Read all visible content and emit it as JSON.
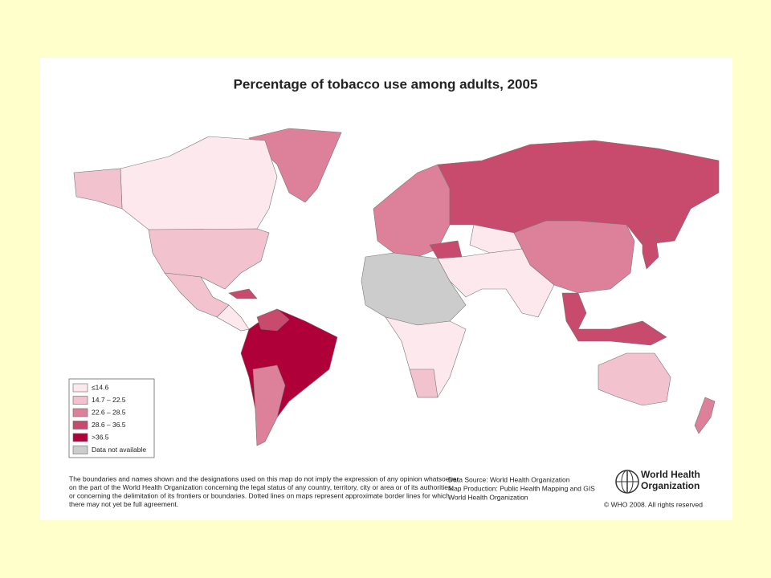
{
  "title": "Percentage of tobacco use among adults, 2005",
  "legend": [
    {
      "label": "≤14.6",
      "color": "#fde8ee"
    },
    {
      "label": "14.7 – 22.5",
      "color": "#f2c2cf"
    },
    {
      "label": "22.6 – 28.5",
      "color": "#dc8199"
    },
    {
      "label": "28.6 – 36.5",
      "color": "#c84a6c"
    },
    {
      "label": ">36.5",
      "color": "#b0003a"
    },
    {
      "label": "Data not available",
      "color": "#cccccc"
    }
  ],
  "disclaimer": [
    "The boundaries and names shown and the designations used on this map do not imply the expression of any opinion whatsoever",
    "on the part of the World Health Organization concerning the legal status of any country, territory, city or area or of its authorities,",
    "or concerning the delimitation of its frontiers or boundaries.  Dotted lines on maps represent approximate border lines for which",
    "there may not yet be full agreement."
  ],
  "source": [
    "Data Source: World Health Organization",
    "Map Production: Public Health Mapping and GIS",
    "World Health Organization"
  ],
  "logo": [
    "World Health",
    "Organization"
  ],
  "copyright": "© WHO 2008. All rights reserved"
}
